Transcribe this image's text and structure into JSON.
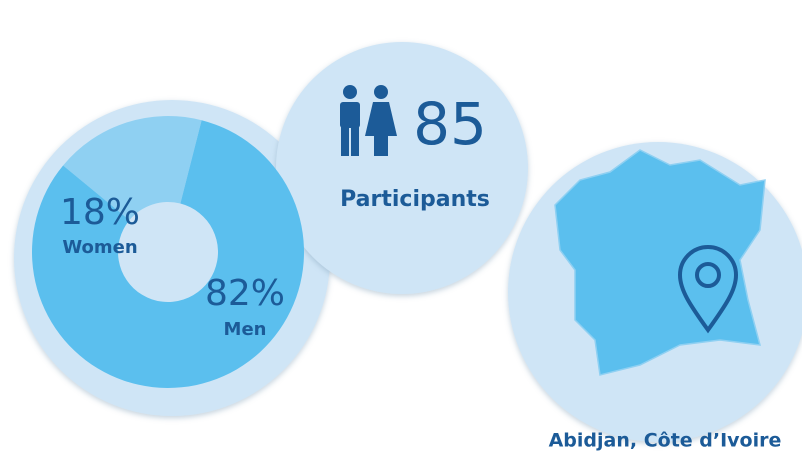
{
  "chart_data": {
    "type": "pie",
    "categories": [
      "Women",
      "Men"
    ],
    "values": [
      18,
      82
    ],
    "value_labels": [
      "18%",
      "82%"
    ],
    "colors": [
      "#8fd0f2",
      "#5bbfee"
    ]
  },
  "participants": {
    "count": 85,
    "label": "Participants"
  },
  "location": "Abidjan, Côte d’Ivoire"
}
